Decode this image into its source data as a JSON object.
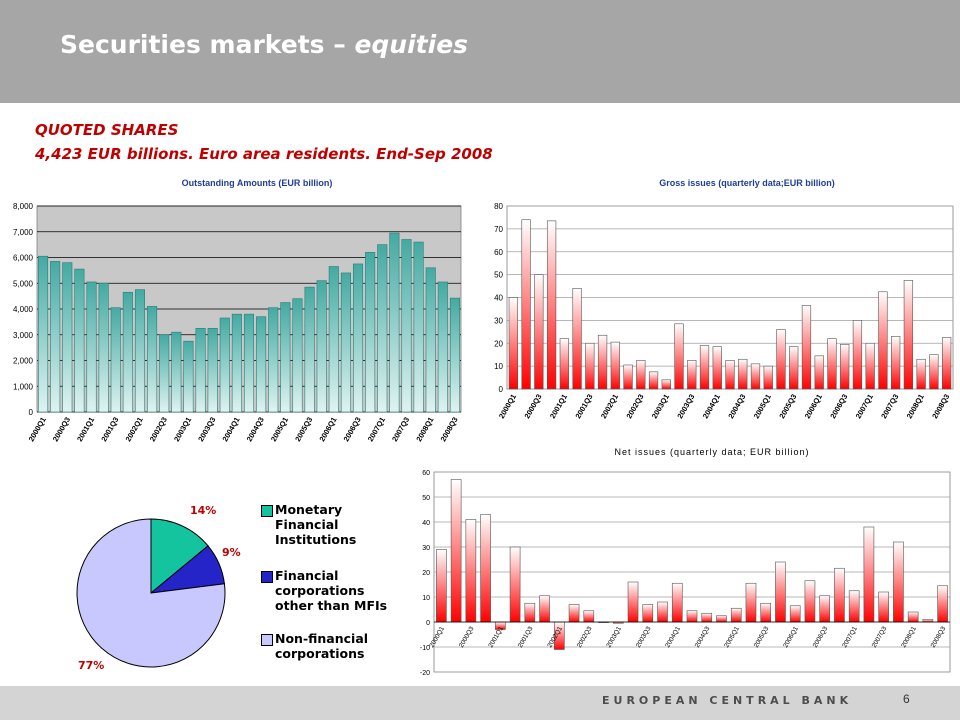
{
  "slide": {
    "title_main": "Securities markets",
    "title_dash": " – ",
    "title_italic": "equities",
    "subtitle1": "QUOTED SHARES",
    "subtitle2": "4,423  EUR billions.  Euro area residents.  End-Sep 2008",
    "footer_bank": "EUROPEAN CENTRAL BANK",
    "page_number": "6"
  },
  "colors": {
    "header_bg": "#a6a6a6",
    "title_red": "#c00000",
    "teal_bar": "#5dbdb5",
    "red_bar": "#ff0000",
    "pie_mfi": "#13c49e",
    "pie_fc": "#2424c8",
    "pie_nfc": "#c8c8ff"
  },
  "chart_data": [
    {
      "type": "bar",
      "title": "Outstanding Amounts  (EUR billion)",
      "categories": [
        "2000Q1",
        "2000Q2",
        "2000Q3",
        "2000Q4",
        "2001Q1",
        "2001Q2",
        "2001Q3",
        "2001Q4",
        "2002Q1",
        "2002Q2",
        "2002Q3",
        "2002Q4",
        "2003Q1",
        "2003Q2",
        "2003Q3",
        "2003Q4",
        "2004Q1",
        "2004Q2",
        "2004Q3",
        "2004Q4",
        "2005Q1",
        "2005Q2",
        "2005Q3",
        "2005Q4",
        "2006Q1",
        "2006Q2",
        "2006Q3",
        "2006Q4",
        "2007Q1",
        "2007Q2",
        "2007Q3",
        "2007Q4",
        "2008Q1",
        "2008Q2",
        "2008Q3"
      ],
      "tick_labels": [
        "2000Q1",
        "2000Q3",
        "2001Q1",
        "2001Q3",
        "2002Q1",
        "2002Q3",
        "2003Q1",
        "2003Q3",
        "2004Q1",
        "2004Q3",
        "2005Q1",
        "2005Q3",
        "2006Q1",
        "2006Q3",
        "2007Q1",
        "2007Q3",
        "2008Q1",
        "2008Q3"
      ],
      "values": [
        6050,
        5850,
        5800,
        5550,
        5050,
        5000,
        4050,
        4650,
        4750,
        4100,
        3000,
        3100,
        2750,
        3250,
        3250,
        3650,
        3800,
        3800,
        3700,
        4050,
        4250,
        4400,
        4850,
        5100,
        5650,
        5400,
        5750,
        6200,
        6500,
        6950,
        6700,
        6600,
        5600,
        5050,
        4423
      ],
      "ylim": [
        0,
        8000
      ],
      "yticks": [
        "0",
        "1,000",
        "2,000",
        "3,000",
        "4,000",
        "5,000",
        "6,000",
        "7,000",
        "8,000"
      ],
      "grid": true
    },
    {
      "type": "bar",
      "title": "Gross issues (quarterly data;EUR billion)",
      "categories": [
        "2000Q1",
        "2000Q2",
        "2000Q3",
        "2000Q4",
        "2001Q1",
        "2001Q2",
        "2001Q3",
        "2001Q4",
        "2002Q1",
        "2002Q2",
        "2002Q3",
        "2002Q4",
        "2003Q1",
        "2003Q2",
        "2003Q3",
        "2003Q4",
        "2004Q1",
        "2004Q2",
        "2004Q3",
        "2004Q4",
        "2005Q1",
        "2005Q2",
        "2005Q3",
        "2005Q4",
        "2006Q1",
        "2006Q2",
        "2006Q3",
        "2006Q4",
        "2007Q1",
        "2007Q2",
        "2007Q3",
        "2007Q4",
        "2008Q1",
        "2008Q2",
        "2008Q3"
      ],
      "tick_labels": [
        "2000Q1",
        "2000Q3",
        "2001Q1",
        "2001Q3",
        "2002Q1",
        "2002Q3",
        "2003Q1",
        "2003Q3",
        "2004Q1",
        "2004Q3",
        "2005Q1",
        "2005Q3",
        "2006Q1",
        "2006Q3",
        "2007Q1",
        "2007Q3",
        "2008Q1",
        "2008Q3"
      ],
      "values": [
        40,
        74,
        50,
        73.5,
        22,
        44,
        20,
        23.5,
        20.5,
        10.5,
        12.5,
        7.5,
        4,
        28.5,
        12.5,
        19,
        18.5,
        12.5,
        13,
        11,
        10,
        26,
        18.5,
        36.5,
        14.5,
        22,
        19.5,
        30,
        20,
        42.5,
        23,
        47.5,
        13,
        15,
        22.5
      ],
      "ylim": [
        0,
        80
      ],
      "yticks": [
        "0",
        "10",
        "20",
        "30",
        "40",
        "50",
        "60",
        "70",
        "80"
      ],
      "grid": true
    },
    {
      "type": "bar",
      "title": "Net issues (quarterly data; EUR billion)",
      "categories": [
        "2000Q1",
        "2000Q2",
        "2000Q3",
        "2000Q4",
        "2001Q1",
        "2001Q2",
        "2001Q3",
        "2001Q4",
        "2002Q1",
        "2002Q2",
        "2002Q3",
        "2002Q4",
        "2003Q1",
        "2003Q2",
        "2003Q3",
        "2003Q4",
        "2004Q1",
        "2004Q2",
        "2004Q3",
        "2004Q4",
        "2005Q1",
        "2005Q2",
        "2005Q3",
        "2005Q4",
        "2006Q1",
        "2006Q2",
        "2006Q3",
        "2006Q4",
        "2007Q1",
        "2007Q2",
        "2007Q3",
        "2007Q4",
        "2008Q1",
        "2008Q2",
        "2008Q3"
      ],
      "tick_labels": [
        "2000Q1",
        "2000Q3",
        "2001Q1",
        "2001Q3",
        "2002Q1",
        "2002Q3",
        "2003Q1",
        "2003Q3",
        "2004Q1",
        "2004Q3",
        "2005Q1",
        "2005Q3",
        "2006Q1",
        "2006Q3",
        "2007Q1",
        "2007Q3",
        "2008Q1",
        "2008Q3"
      ],
      "values": [
        29,
        57,
        41,
        43,
        -3,
        30,
        7.5,
        10.5,
        -11,
        7,
        4.5,
        0,
        -0.5,
        16,
        7,
        8,
        15.5,
        4.5,
        3.5,
        2.5,
        5.5,
        15.5,
        7.5,
        24,
        6.5,
        16.5,
        10.5,
        21.5,
        12.5,
        38,
        12,
        32,
        4,
        1,
        14.5
      ],
      "ylim": [
        -20,
        60
      ],
      "yticks": [
        "-20",
        "-10",
        "0",
        "10",
        "20",
        "30",
        "40",
        "50",
        "60"
      ],
      "grid": true
    },
    {
      "type": "pie",
      "labels": [
        "Monetary Financial Institutions",
        "Financial corporations other than MFIs",
        "Non-financial corporations"
      ],
      "legend_lines": [
        [
          "Monetary",
          "Financial",
          "Institutions"
        ],
        [
          "Financial",
          "corporations",
          "other than MFIs"
        ],
        [
          "Non-financial",
          "corporations"
        ]
      ],
      "values": [
        14,
        9,
        77
      ],
      "value_labels": [
        "14%",
        "9%",
        "77%"
      ],
      "colors": [
        "#13c49e",
        "#2424c8",
        "#c8c8ff"
      ],
      "legend": "right"
    }
  ]
}
